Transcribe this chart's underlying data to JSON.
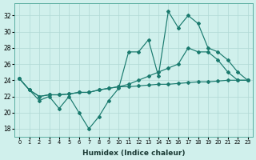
{
  "xlabel": "Humidex (Indice chaleur)",
  "xlim": [
    -0.5,
    23.5
  ],
  "ylim": [
    17.0,
    33.5
  ],
  "yticks": [
    18,
    20,
    22,
    24,
    26,
    28,
    30,
    32
  ],
  "background_color": "#d0f0ec",
  "grid_color": "#b0d8d4",
  "line_color": "#1a7a6e",
  "line1_y": [
    24.2,
    22.8,
    21.5,
    22.0,
    20.5,
    22.0,
    20.0,
    18.0,
    19.5,
    21.5,
    23.0,
    27.5,
    27.5,
    29.0,
    24.5,
    32.5,
    30.5,
    32.0,
    31.0,
    28.0,
    27.5,
    26.5,
    25.0,
    24.0
  ],
  "line2_y": [
    24.2,
    22.8,
    22.0,
    22.2,
    22.2,
    22.3,
    22.5,
    22.5,
    22.8,
    23.0,
    23.2,
    23.5,
    24.0,
    24.5,
    25.0,
    25.5,
    26.0,
    28.0,
    27.5,
    27.5,
    26.5,
    25.0,
    24.0,
    24.0
  ],
  "line3_y": [
    24.2,
    22.8,
    22.0,
    22.2,
    22.2,
    22.3,
    22.5,
    22.5,
    22.8,
    23.0,
    23.2,
    23.2,
    23.3,
    23.4,
    23.5,
    23.5,
    23.6,
    23.7,
    23.8,
    23.8,
    23.9,
    24.0,
    24.0,
    24.0
  ]
}
